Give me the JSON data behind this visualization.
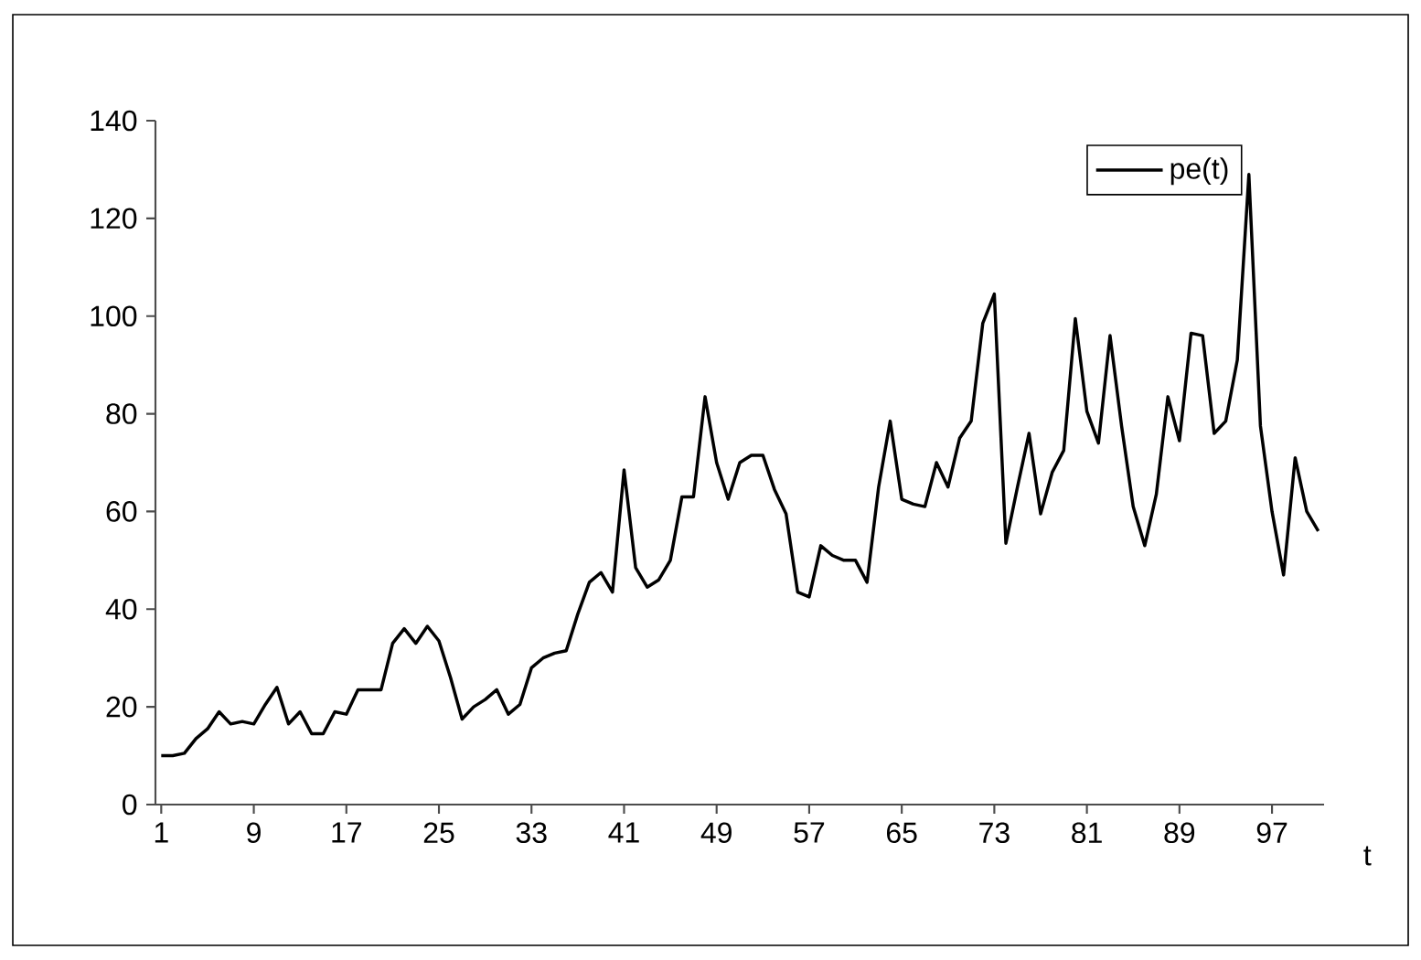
{
  "chart_data": {
    "type": "line",
    "xlabel": "t",
    "categories": [
      "1",
      null,
      null,
      null,
      null,
      null,
      null,
      null,
      "9",
      null,
      null,
      null,
      null,
      null,
      null,
      null,
      "17",
      null,
      null,
      null,
      null,
      null,
      null,
      null,
      "25",
      null,
      null,
      null,
      null,
      null,
      null,
      null,
      "33",
      null,
      null,
      null,
      null,
      null,
      null,
      null,
      "41",
      null,
      null,
      null,
      null,
      null,
      null,
      null,
      "49",
      null,
      null,
      null,
      null,
      null,
      null,
      null,
      "57",
      null,
      null,
      null,
      null,
      null,
      null,
      null,
      "65",
      null,
      null,
      null,
      null,
      null,
      null,
      null,
      "73",
      null,
      null,
      null,
      null,
      null,
      null,
      null,
      "81",
      null,
      null,
      null,
      null,
      null,
      null,
      null,
      "89",
      null,
      null,
      null,
      null,
      null,
      null,
      null,
      "97",
      null,
      null,
      null,
      null
    ],
    "series": [
      {
        "name": "pe(t)",
        "color": "#000000",
        "values": [
          10,
          10,
          10.5,
          13.5,
          15.5,
          19,
          16.5,
          17,
          16.5,
          20.5,
          24,
          16.5,
          19,
          14.5,
          14.5,
          19,
          18.5,
          23.5,
          23.5,
          23.5,
          33,
          36,
          33,
          36.5,
          33.5,
          26,
          17.5,
          20,
          21.5,
          23.5,
          18.5,
          20.5,
          28,
          30,
          31,
          31.5,
          39,
          45.5,
          47.5,
          43.5,
          68.5,
          48.5,
          44.5,
          46,
          50,
          63,
          63,
          83.5,
          70,
          62.5,
          70,
          71.5,
          71.5,
          64.5,
          59.5,
          43.5,
          42.5,
          53,
          51,
          50,
          50,
          45.5,
          65,
          78.5,
          62.5,
          61.5,
          61,
          70,
          65,
          75,
          78.5,
          98.5,
          104.5,
          53.5,
          65,
          76,
          59.5,
          68,
          72.5,
          99.5,
          80.5,
          74,
          96,
          77.5,
          61,
          53,
          63.5,
          83.5,
          74.5,
          96.5,
          96,
          76,
          78.5,
          91,
          129,
          77.5,
          60,
          47,
          71,
          60,
          56
        ]
      }
    ],
    "ylim": [
      0,
      140
    ],
    "yticks": [
      0,
      20,
      40,
      60,
      80,
      100,
      120,
      140
    ],
    "legend": "top right",
    "marker": "none",
    "line_style": "solid"
  }
}
